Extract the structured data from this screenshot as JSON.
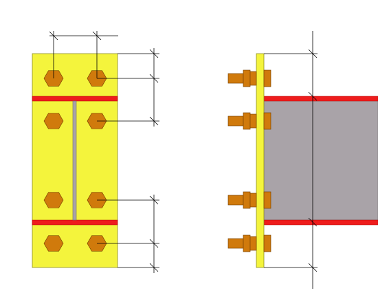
{
  "drawing": {
    "colors": {
      "background": "#ffffff",
      "end_plate": "#f4f43c",
      "end_plate_edge": "#8a8a20",
      "flange": "#ee1c1c",
      "web": "#a9a3a8",
      "web_edge": "#6f6a6e",
      "bolt": "#d07a0c",
      "bolt_edge": "#7a4300",
      "dimension_line": "#000000"
    },
    "front_view": {
      "bolt_rows": 4,
      "bolt_columns": 2
    },
    "side_view": {
      "bolt_rows": 4
    }
  }
}
